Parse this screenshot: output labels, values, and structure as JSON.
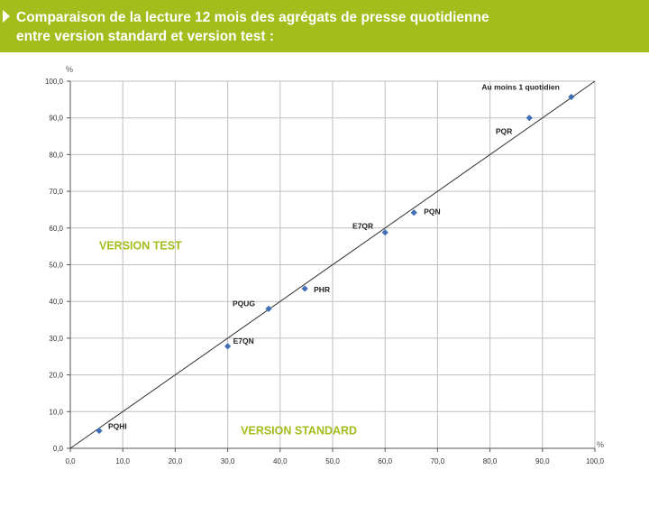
{
  "header": {
    "title_line1": "Comparaison de la lecture 12 mois des agrégats de presse quotidienne",
    "title_line2": "entre version standard et version test :"
  },
  "colors": {
    "accent": "#a3bd1c",
    "point": "#3f6fb4",
    "grid": "#bfbfbf",
    "diagonal": "#333333"
  },
  "chart_data": {
    "type": "scatter",
    "x_unit": "%",
    "y_unit": "%",
    "xlim": [
      0,
      100
    ],
    "ylim": [
      0,
      100
    ],
    "x_ticks": [
      "0,0",
      "10,0",
      "20,0",
      "30,0",
      "40,0",
      "50,0",
      "60,0",
      "70,0",
      "80,0",
      "90,0",
      "100,0"
    ],
    "y_ticks": [
      "0,0",
      "10,0",
      "20,0",
      "30,0",
      "40,0",
      "50,0",
      "60,0",
      "70,0",
      "80,0",
      "90,0",
      "100,0"
    ],
    "grid": true,
    "reference_line": {
      "from": [
        0,
        0
      ],
      "to": [
        100,
        100
      ]
    },
    "region_labels": {
      "upper_left": "VERSION TEST",
      "lower_right": "VERSION STANDARD"
    },
    "points": [
      {
        "label": "PQHI",
        "x": 5.5,
        "y": 4.8
      },
      {
        "label": "E7QN",
        "x": 30.0,
        "y": 27.8
      },
      {
        "label": "PQUG",
        "x": 37.8,
        "y": 38.0
      },
      {
        "label": "PHR",
        "x": 44.7,
        "y": 43.5
      },
      {
        "label": "E7QR",
        "x": 60.0,
        "y": 58.8
      },
      {
        "label": "PQN",
        "x": 65.5,
        "y": 64.2
      },
      {
        "label": "PQR",
        "x": 87.5,
        "y": 90.0
      },
      {
        "label": "Au moins 1 quotidien",
        "x": 95.5,
        "y": 95.7
      }
    ]
  }
}
